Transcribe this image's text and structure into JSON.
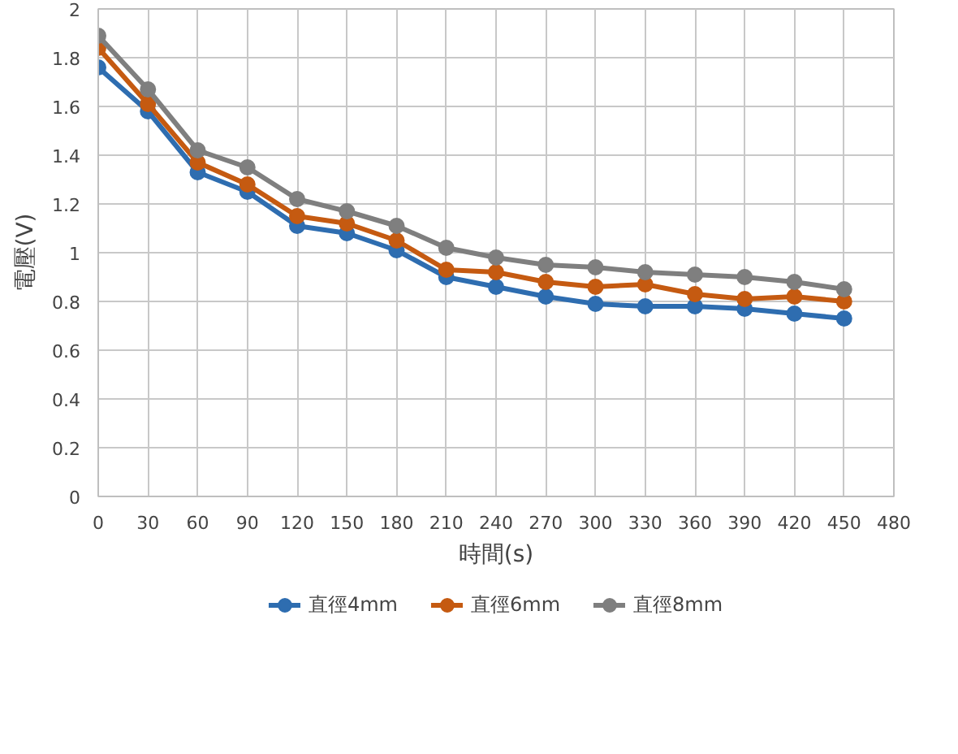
{
  "chart_data": {
    "type": "line",
    "xlabel": "時間(s)",
    "ylabel": "電壓(V)",
    "x": [
      0,
      30,
      60,
      90,
      120,
      150,
      180,
      210,
      240,
      270,
      300,
      330,
      360,
      390,
      420,
      450
    ],
    "xlim": [
      0,
      480
    ],
    "xticks": [
      0,
      30,
      60,
      90,
      120,
      150,
      180,
      210,
      240,
      270,
      300,
      330,
      360,
      390,
      420,
      450,
      480
    ],
    "ylim": [
      0,
      2
    ],
    "yticks": [
      0,
      0.2,
      0.4,
      0.6,
      0.8,
      1,
      1.2,
      1.4,
      1.6,
      1.8,
      2
    ],
    "grid": true,
    "legend": "bottom",
    "marker": "circle",
    "line_style": "solid",
    "series": [
      {
        "name": "直徑4mm",
        "color": "#2e6db0",
        "values": [
          1.76,
          1.58,
          1.33,
          1.25,
          1.11,
          1.08,
          1.01,
          0.9,
          0.86,
          0.82,
          0.79,
          0.78,
          0.78,
          0.77,
          0.75,
          0.73
        ]
      },
      {
        "name": "直徑6mm",
        "color": "#c55a11",
        "values": [
          1.84,
          1.61,
          1.37,
          1.28,
          1.15,
          1.12,
          1.05,
          0.93,
          0.92,
          0.88,
          0.86,
          0.87,
          0.83,
          0.81,
          0.82,
          0.8
        ]
      },
      {
        "name": "直徑8mm",
        "color": "#7f7f7f",
        "values": [
          1.89,
          1.67,
          1.42,
          1.35,
          1.22,
          1.17,
          1.11,
          1.02,
          0.98,
          0.95,
          0.94,
          0.92,
          0.91,
          0.9,
          0.88,
          0.85
        ]
      }
    ]
  }
}
